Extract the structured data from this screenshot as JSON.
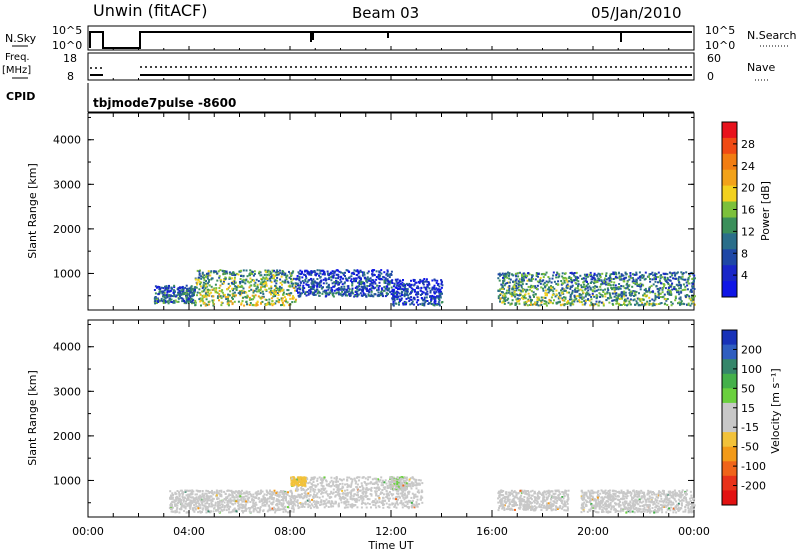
{
  "header": {
    "station": "Unwin (fitACF)",
    "beam": "Beam 03",
    "date": "05/Jan/2010"
  },
  "strip": {
    "nsky_label": "N.Sky",
    "nsky_ticks": [
      "10^5",
      "10^0"
    ],
    "nsearch_ticks": [
      "10^5",
      "10^0"
    ],
    "nsearch_label": "N.Search",
    "freq_label_1": "Freq.",
    "freq_label_2": "[MHz]",
    "freq_ticks": [
      "18",
      "8"
    ],
    "nave_ticks": [
      "60",
      "0"
    ],
    "nave_label": "Nave",
    "cpid_label": "CPID",
    "cpid_value": "tbjmode7pulse  -8600"
  },
  "panels": {
    "ylabel": "Slant Range [km]",
    "yticks": [
      "4000",
      "3000",
      "2000",
      "1000"
    ],
    "xticks": [
      "00:00",
      "04:00",
      "08:00",
      "12:00",
      "16:00",
      "20:00",
      "00:00"
    ],
    "xlabel": "Time UT"
  },
  "power_colorbar": {
    "label": "Power [dB]",
    "ticks": [
      "28",
      "24",
      "20",
      "16",
      "12",
      "8",
      "4"
    ],
    "colors": [
      "#e8121d",
      "#f04a14",
      "#f27d12",
      "#f2a21a",
      "#f3d11f",
      "#7cc03b",
      "#3a8f5a",
      "#2a6e8a",
      "#1e47a6",
      "#1926c8",
      "#0f16e6"
    ]
  },
  "velocity_colorbar": {
    "label": "Velocity [m s⁻¹]",
    "ticks": [
      "200",
      "100",
      "50",
      "15",
      "-15",
      "-50",
      "-100",
      "-200"
    ],
    "colors": [
      "#1832b8",
      "#2f5ec0",
      "#35866a",
      "#44b04a",
      "#6ad03e",
      "#c8c8c8",
      "#c8c8c8",
      "#f2c23a",
      "#f39a18",
      "#f0641a",
      "#e8321a",
      "#e21212"
    ]
  },
  "chart_data": [
    {
      "type": "heatmap",
      "title": "Power",
      "xlabel": "Time UT",
      "ylabel": "Slant Range [km]",
      "xlim": [
        "00:00",
        "24:00"
      ],
      "ylim": [
        180,
        4600
      ],
      "colorbar_label": "Power [dB]",
      "colorbar_range": [
        0,
        32
      ],
      "regions": [
        {
          "t_start": 2.6,
          "t_end": 4.2,
          "range_km": [
            350,
            750
          ],
          "power_db": 10
        },
        {
          "t_start": 4.2,
          "t_end": 8.2,
          "range_km": [
            300,
            1100
          ],
          "power_db": 18
        },
        {
          "t_start": 8.2,
          "t_end": 12.0,
          "range_km": [
            500,
            1100
          ],
          "power_db": 8
        },
        {
          "t_start": 12.0,
          "t_end": 14.0,
          "range_km": [
            300,
            900
          ],
          "power_db": 6
        },
        {
          "t_start": 16.2,
          "t_end": 19.0,
          "range_km": [
            300,
            1050
          ],
          "power_db": 16
        },
        {
          "t_start": 19.0,
          "t_end": 24.0,
          "range_km": [
            300,
            1050
          ],
          "power_db": 14
        }
      ]
    },
    {
      "type": "heatmap",
      "title": "Velocity",
      "xlabel": "Time UT",
      "ylabel": "Slant Range [km]",
      "xlim": [
        "00:00",
        "24:00"
      ],
      "ylim": [
        180,
        4600
      ],
      "colorbar_label": "Velocity [m s⁻¹]",
      "colorbar_range": [
        -250,
        250
      ],
      "regions": [
        {
          "t_start": 3.2,
          "t_end": 8.2,
          "range_km": [
            300,
            800
          ],
          "velocity": 0
        },
        {
          "t_start": 8.2,
          "t_end": 13.2,
          "range_km": [
            400,
            1100
          ],
          "velocity": 0
        },
        {
          "t_start": 11.9,
          "t_end": 12.6,
          "range_km": [
            800,
            1100
          ],
          "velocity": 40
        },
        {
          "t_start": 8.0,
          "t_end": 8.6,
          "range_km": [
            900,
            1100
          ],
          "velocity": -60
        },
        {
          "t_start": 16.2,
          "t_end": 19.0,
          "range_km": [
            350,
            800
          ],
          "velocity": 0
        },
        {
          "t_start": 19.5,
          "t_end": 24.0,
          "range_km": [
            300,
            800
          ],
          "velocity": 0
        }
      ]
    }
  ]
}
